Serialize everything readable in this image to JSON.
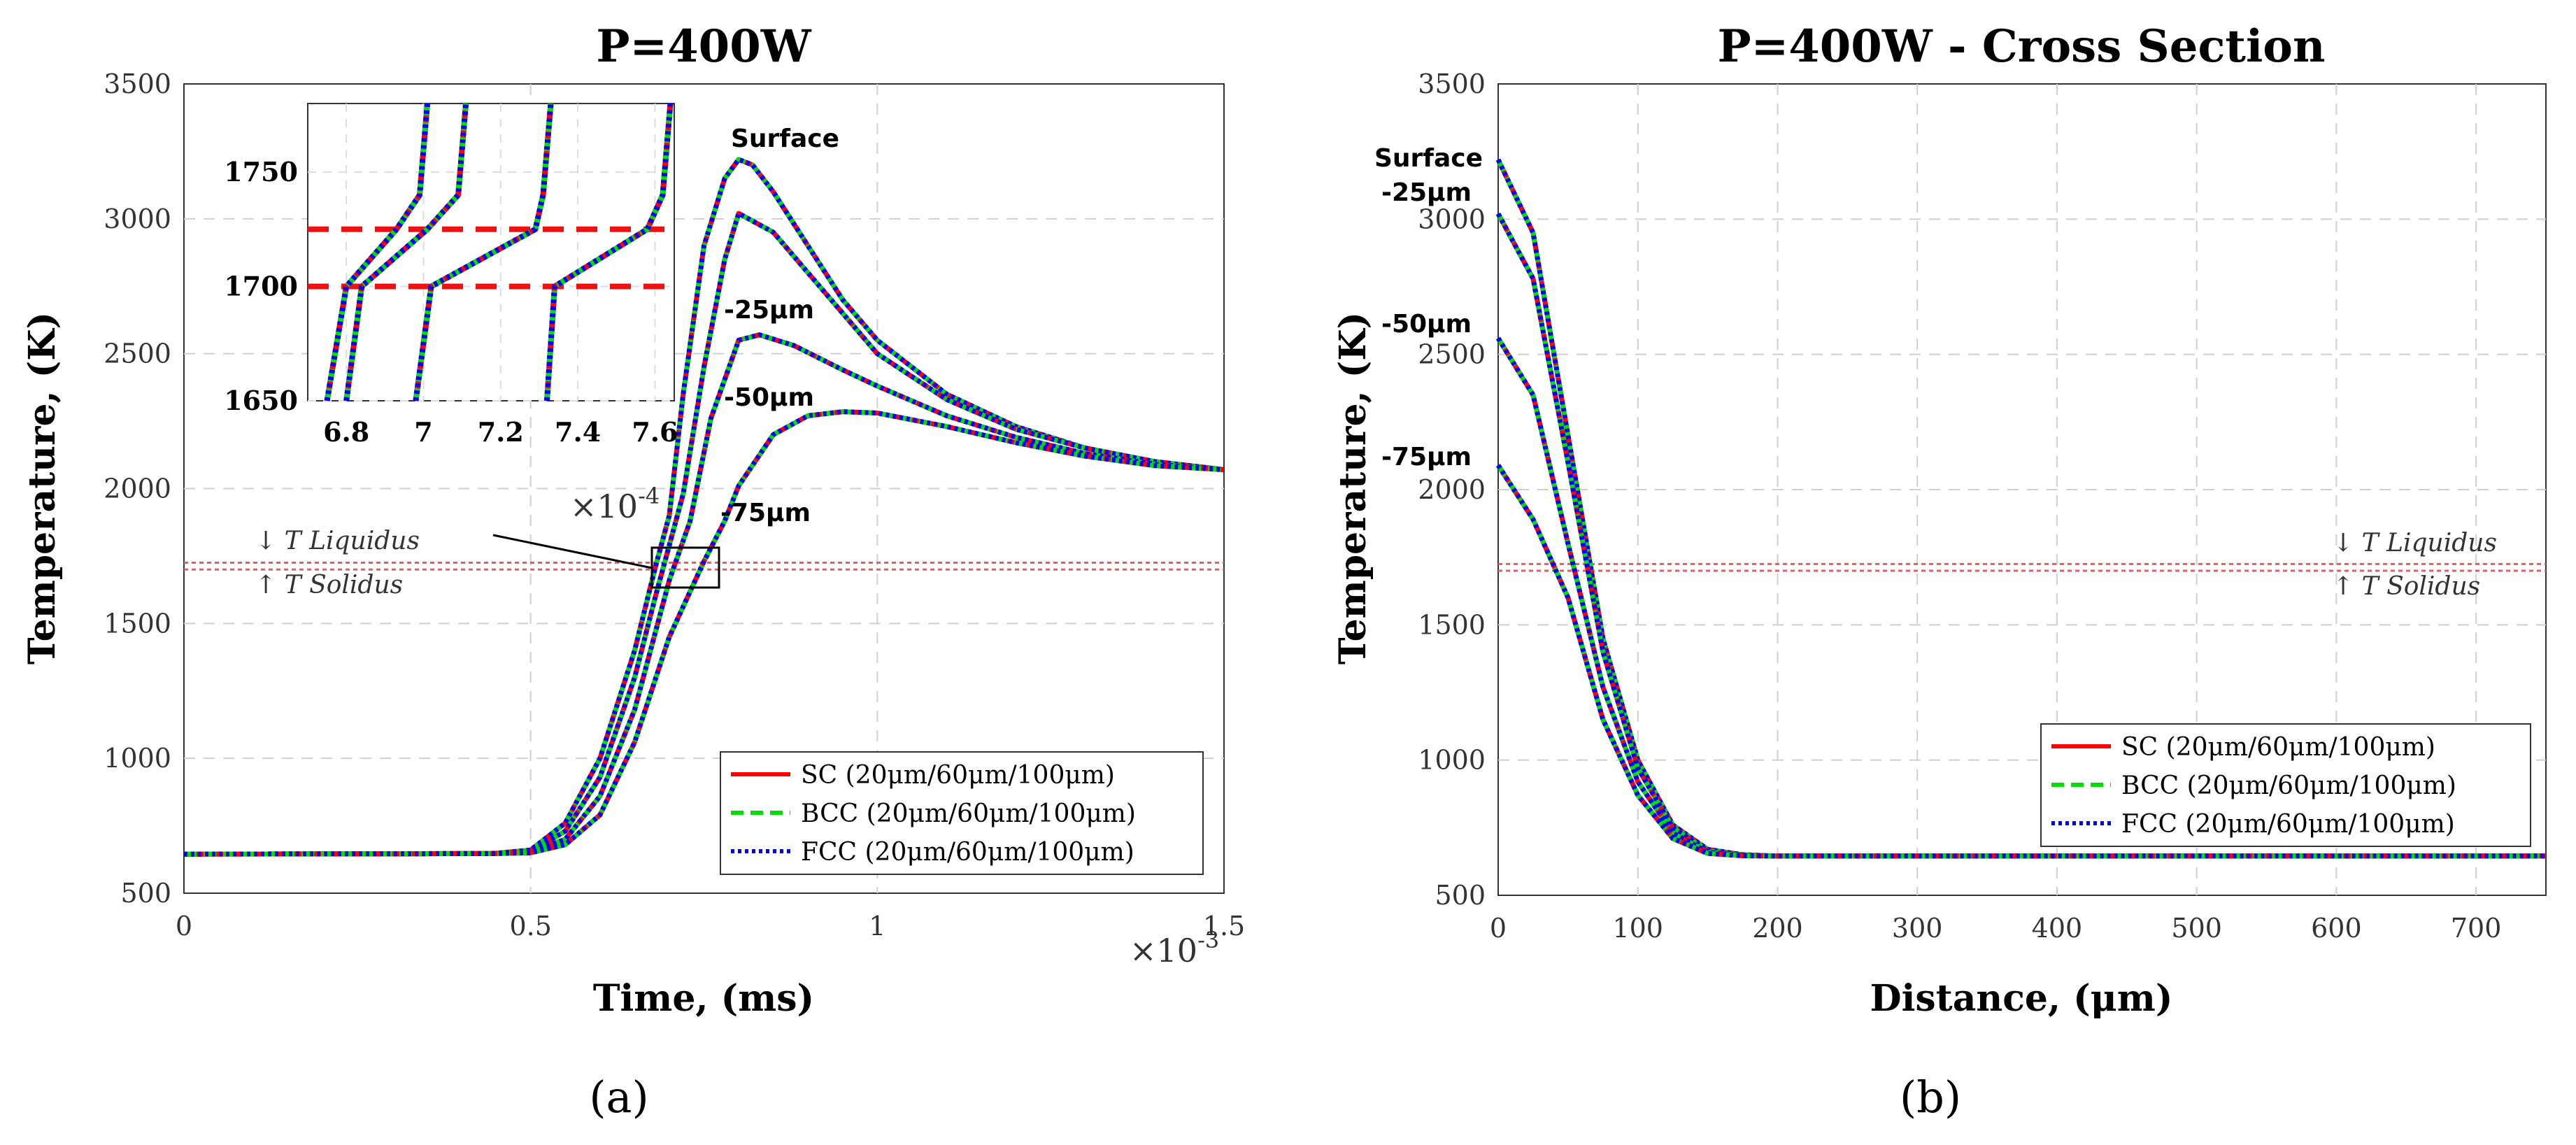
{
  "panel_labels": [
    "(a)",
    "(b)"
  ],
  "chart_data": [
    {
      "type": "line",
      "title": "P=400W",
      "xlabel": "Time, (ms)",
      "ylabel": "Temperature, (K)",
      "xlim": [
        0,
        0.0015
      ],
      "ylim": [
        500,
        3500
      ],
      "x_ticks": [
        "0",
        "0.5",
        "1",
        "1.5"
      ],
      "x_tick_values": [
        0,
        0.0005,
        0.001,
        0.0015
      ],
      "x_exponent_label": "×10",
      "x_exponent_power": "-3",
      "y_ticks": [
        "500",
        "1000",
        "1500",
        "2000",
        "2500",
        "3000",
        "3500"
      ],
      "y_tick_values": [
        500,
        1000,
        1500,
        2000,
        2500,
        3000,
        3500
      ],
      "grid": true,
      "liquidus": 1725,
      "solidus": 1700,
      "liquidus_label": "↓ T Liquidus",
      "solidus_label": "↑ T Solidus",
      "legend": {
        "position": "bottom-right",
        "entries": [
          {
            "label": "SC (20μm/60μm/100μm)",
            "color": "#ff0000",
            "style": "solid"
          },
          {
            "label": "BCC (20μm/60μm/100μm)",
            "color": "#00dd00",
            "style": "dashed"
          },
          {
            "label": "FCC (20μm/60μm/100μm)",
            "color": "#0000ff",
            "style": "dotted"
          }
        ]
      },
      "series": [
        {
          "name": "Surface",
          "x": [
            0,
            0.0003,
            0.00045,
            0.0005,
            0.00055,
            0.0006,
            0.00065,
            0.00068,
            0.0007,
            0.00072,
            0.00075,
            0.00078,
            0.0008,
            0.00082,
            0.00085,
            0.0009,
            0.00095,
            0.001,
            0.0011,
            0.0012,
            0.0013,
            0.0014,
            0.0015
          ],
          "y": [
            645,
            646,
            648,
            660,
            760,
            1000,
            1400,
            1710,
            1900,
            2350,
            2900,
            3150,
            3220,
            3200,
            3100,
            2900,
            2700,
            2550,
            2350,
            2230,
            2150,
            2100,
            2070
          ]
        },
        {
          "name": "-25μm",
          "x": [
            0,
            0.0003,
            0.00045,
            0.0005,
            0.00055,
            0.0006,
            0.00065,
            0.00068,
            0.00072,
            0.00075,
            0.00078,
            0.0008,
            0.00085,
            0.0009,
            0.00095,
            0.001,
            0.0011,
            0.0012,
            0.0013,
            0.0014,
            0.0015
          ],
          "y": [
            645,
            646,
            647,
            655,
            730,
            930,
            1300,
            1600,
            1980,
            2450,
            2850,
            3020,
            2950,
            2800,
            2650,
            2500,
            2330,
            2220,
            2150,
            2100,
            2070
          ]
        },
        {
          "name": "-50μm",
          "x": [
            0,
            0.0003,
            0.00045,
            0.0005,
            0.00055,
            0.0006,
            0.00065,
            0.0007,
            0.00073,
            0.00076,
            0.0008,
            0.00083,
            0.00088,
            0.00095,
            0.001,
            0.0011,
            0.0012,
            0.0013,
            0.0014,
            0.0015
          ],
          "y": [
            645,
            646,
            647,
            652,
            700,
            860,
            1180,
            1660,
            1880,
            2260,
            2550,
            2570,
            2530,
            2440,
            2380,
            2270,
            2190,
            2130,
            2090,
            2070
          ]
        },
        {
          "name": "-75μm",
          "x": [
            0,
            0.0003,
            0.00045,
            0.0005,
            0.00055,
            0.0006,
            0.00065,
            0.0007,
            0.00075,
            0.00078,
            0.0008,
            0.00085,
            0.0009,
            0.00095,
            0.001,
            0.0011,
            0.0012,
            0.0013,
            0.0014,
            0.0015
          ],
          "y": [
            645,
            646,
            647,
            650,
            680,
            790,
            1060,
            1450,
            1730,
            1880,
            2010,
            2200,
            2270,
            2285,
            2280,
            2230,
            2170,
            2120,
            2085,
            2070
          ]
        }
      ],
      "annotations": [
        "Surface",
        "-25μm",
        "-50μm",
        "-75μm"
      ],
      "inset": {
        "xlim": [
          6.7,
          7.65
        ],
        "ylim": [
          1650,
          1780
        ],
        "x_ticks": [
          "6.8",
          "7",
          "7.2",
          "7.4",
          "7.6"
        ],
        "x_tick_values": [
          6.8,
          7.0,
          7.2,
          7.4,
          7.6
        ],
        "y_ticks": [
          "1650",
          "1700",
          "1750"
        ],
        "y_tick_values": [
          1650,
          1700,
          1750
        ],
        "x_exponent_label": "×10",
        "x_exponent_power": "-4",
        "lines": [
          {
            "x": [
              6.75,
              6.8,
              6.93,
              6.99,
              7.01
            ],
            "y": [
              1650,
              1700,
              1725,
              1740,
              1780
            ]
          },
          {
            "x": [
              6.8,
              6.84,
              7.01,
              7.09,
              7.11
            ],
            "y": [
              1650,
              1700,
              1725,
              1740,
              1780
            ]
          },
          {
            "x": [
              6.98,
              7.02,
              7.29,
              7.31,
              7.33
            ],
            "y": [
              1650,
              1700,
              1725,
              1740,
              1780
            ]
          },
          {
            "x": [
              7.32,
              7.34,
              7.58,
              7.62,
              7.64
            ],
            "y": [
              1650,
              1700,
              1725,
              1740,
              1780
            ]
          }
        ]
      }
    },
    {
      "type": "line",
      "title": "P=400W - Cross Section",
      "xlabel": "Distance, (μm)",
      "ylabel": "Temperature, (K)",
      "xlim": [
        0,
        750
      ],
      "ylim": [
        500,
        3500
      ],
      "x_ticks": [
        "0",
        "100",
        "200",
        "300",
        "400",
        "500",
        "600",
        "700"
      ],
      "x_tick_values": [
        0,
        100,
        200,
        300,
        400,
        500,
        600,
        700
      ],
      "y_ticks": [
        "500",
        "1000",
        "1500",
        "2000",
        "2500",
        "3000",
        "3500"
      ],
      "y_tick_values": [
        500,
        1000,
        1500,
        2000,
        2500,
        3000,
        3500
      ],
      "grid": true,
      "liquidus": 1725,
      "solidus": 1700,
      "liquidus_label": "↓ T Liquidus",
      "solidus_label": "↑ T Solidus",
      "legend": {
        "position": "bottom-right",
        "entries": [
          {
            "label": "SC (20μm/60μm/100μm)",
            "color": "#ff0000",
            "style": "solid"
          },
          {
            "label": "BCC (20μm/60μm/100μm)",
            "color": "#00dd00",
            "style": "dashed"
          },
          {
            "label": "FCC (20μm/60μm/100μm)",
            "color": "#0000ff",
            "style": "dotted"
          }
        ]
      },
      "series": [
        {
          "name": "Surface",
          "x": [
            0,
            25,
            50,
            75,
            100,
            125,
            150,
            175,
            200,
            300,
            500,
            750
          ],
          "y": [
            3220,
            2950,
            2200,
            1450,
            1000,
            760,
            670,
            650,
            645,
            645,
            645,
            645
          ]
        },
        {
          "name": "-25μm",
          "x": [
            0,
            25,
            50,
            75,
            100,
            125,
            150,
            175,
            200,
            300,
            500,
            750
          ],
          "y": [
            3020,
            2780,
            2100,
            1400,
            970,
            750,
            665,
            648,
            645,
            645,
            645,
            645
          ]
        },
        {
          "name": "-50μm",
          "x": [
            0,
            25,
            50,
            75,
            100,
            125,
            150,
            175,
            200,
            300,
            500,
            750
          ],
          "y": [
            2560,
            2350,
            1800,
            1270,
            920,
            730,
            660,
            647,
            645,
            645,
            645,
            645
          ]
        },
        {
          "name": "-75μm",
          "x": [
            0,
            25,
            50,
            75,
            100,
            125,
            150,
            175,
            200,
            300,
            500,
            750
          ],
          "y": [
            2090,
            1890,
            1600,
            1150,
            870,
            710,
            655,
            646,
            645,
            645,
            645,
            645
          ]
        }
      ],
      "annotations": [
        "Surface",
        "-25μm",
        "-50μm",
        "-75μm"
      ]
    }
  ]
}
